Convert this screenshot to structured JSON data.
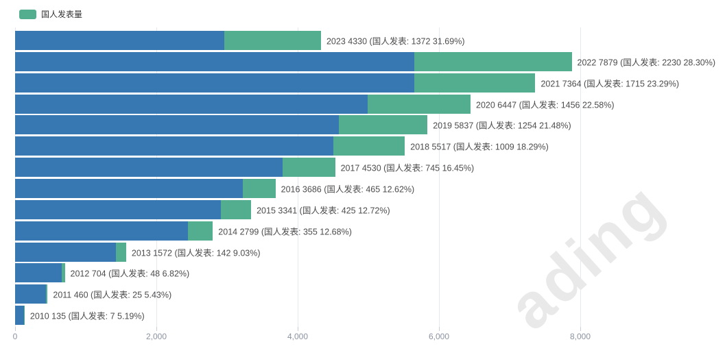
{
  "legend": {
    "label": "国人发表量"
  },
  "watermark": {
    "text": "ading"
  },
  "colors": {
    "total_bar_blue": "#3777b2",
    "domestic_bar_green": "#53ae8f",
    "gridline": "#e4e9f0"
  },
  "chart_data": {
    "type": "bar",
    "orientation": "horizontal",
    "title": "",
    "legend_entries": [
      "国人发表量"
    ],
    "legend_position": "top-left",
    "grid": true,
    "categories": [
      "2023",
      "2022",
      "2021",
      "2020",
      "2019",
      "2018",
      "2017",
      "2016",
      "2015",
      "2014",
      "2013",
      "2012",
      "2011",
      "2010"
    ],
    "totals": [
      4330,
      7879,
      7364,
      6447,
      5837,
      5517,
      4530,
      3686,
      3341,
      2799,
      1572,
      704,
      460,
      135
    ],
    "series": [
      {
        "name": "国人发表量",
        "color": "#53ae8f",
        "values": [
          1372,
          2230,
          1715,
          1456,
          1254,
          1009,
          745,
          465,
          425,
          355,
          142,
          48,
          25,
          7
        ]
      }
    ],
    "remainder_color": "#3777b2",
    "percentages": [
      "31.69%",
      "28.30%",
      "23.29%",
      "22.58%",
      "21.48%",
      "18.29%",
      "16.45%",
      "12.62%",
      "12.72%",
      "12.68%",
      "9.03%",
      "6.82%",
      "5.43%",
      "5.19%"
    ],
    "bar_labels": [
      "2023 4330 (国人发表: 1372 31.69%)",
      "2022 7879 (国人发表: 2230 28.30%)",
      "2021 7364 (国人发表: 1715 23.29%)",
      "2020 6447 (国人发表: 1456 22.58%)",
      "2019 5837 (国人发表: 1254 21.48%)",
      "2018 5517 (国人发表: 1009 18.29%)",
      "2017 4530 (国人发表: 745 16.45%)",
      "2016 3686 (国人发表: 465 12.62%)",
      "2015 3341 (国人发表: 425 12.72%)",
      "2014 2799 (国人发表: 355 12.68%)",
      "2013 1572 (国人发表: 142 9.03%)",
      "2012 704 (国人发表: 48 6.82%)",
      "2011 460 (国人发表: 25 5.43%)",
      "2010 135 (国人发表: 7 5.19%)"
    ],
    "xlabel": "",
    "ylabel": "",
    "x_axis": {
      "ticks": [
        0,
        2000,
        4000,
        6000,
        8000
      ],
      "tick_labels": [
        "0",
        "2,000",
        "4,000",
        "6,000",
        "8,000"
      ],
      "min": 0,
      "max": 8000
    }
  }
}
